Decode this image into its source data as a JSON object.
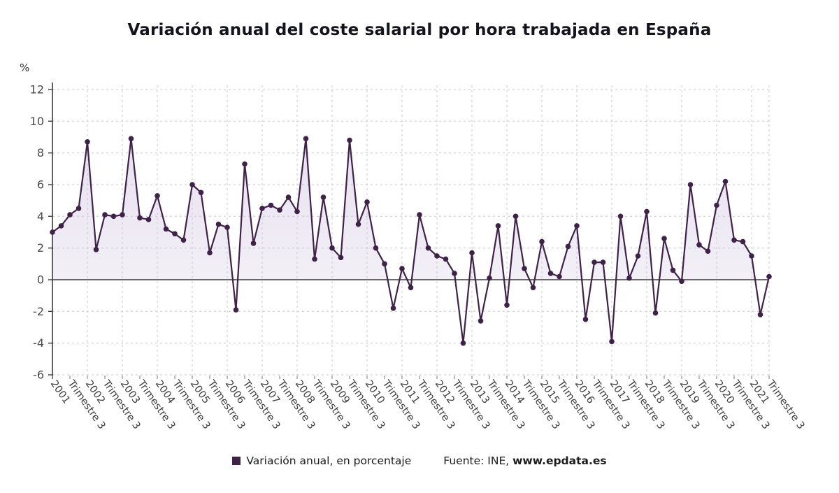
{
  "chart_data": {
    "type": "line",
    "title": "Variación anual del coste salarial por hora trabajada en España",
    "ylabel": "%",
    "xlabel": "",
    "ylim": [
      -6,
      12
    ],
    "yticks": [
      12,
      10,
      8,
      6,
      4,
      2,
      0,
      -2,
      -4,
      -6
    ],
    "grid": true,
    "legend_position": "bottom",
    "series_name": "Variación anual, en porcentaje",
    "x_period_start": "2001 Trimestre 1",
    "x_period_end": "2021 Trimestre 3",
    "x_tick_labels": [
      "2001",
      "Trimestre 3",
      "2002",
      "Trimestre 3",
      "2003",
      "Trimestre 3",
      "2004",
      "Trimestre 3",
      "2005",
      "Trimestre 3",
      "2006",
      "Trimestre 3",
      "2007",
      "Trimestre 3",
      "2008",
      "Trimestre 3",
      "2009",
      "Trimestre 3",
      "2010",
      "Trimestre 3",
      "2011",
      "Trimestre 3",
      "2012",
      "Trimestre 3",
      "2013",
      "Trimestre 3",
      "2014",
      "Trimestre 3",
      "2015",
      "Trimestre 3",
      "2016",
      "Trimestre 3",
      "2017",
      "Trimestre 3",
      "2018",
      "Trimestre 3",
      "2019",
      "Trimestre 3",
      "2020",
      "Trimestre 3",
      "2021",
      "Trimestre 3"
    ],
    "values": [
      3.0,
      3.4,
      4.1,
      4.5,
      8.7,
      1.9,
      4.1,
      4.0,
      4.1,
      8.9,
      3.9,
      3.8,
      5.3,
      3.2,
      2.9,
      2.5,
      6.0,
      5.5,
      1.7,
      3.5,
      3.3,
      -1.9,
      7.3,
      2.3,
      4.5,
      4.7,
      4.4,
      5.2,
      4.3,
      8.9,
      1.3,
      5.2,
      2.0,
      1.4,
      8.8,
      3.5,
      4.9,
      2.0,
      1.0,
      -1.8,
      0.7,
      -0.5,
      4.1,
      2.0,
      1.5,
      1.3,
      0.4,
      -4.0,
      1.7,
      -2.6,
      0.1,
      3.4,
      -1.6,
      4.0,
      0.7,
      -0.5,
      2.4,
      0.4,
      0.2,
      2.1,
      3.4,
      -2.5,
      1.1,
      1.1,
      -3.9,
      4.0,
      0.1,
      1.5,
      4.3,
      -2.1,
      2.6,
      0.6,
      -0.1,
      6.0,
      2.2,
      1.8,
      4.7,
      6.2,
      2.5,
      2.4,
      1.5,
      -2.2,
      0.2
    ],
    "colors": {
      "line": "#3F2248",
      "point": "#3F2248",
      "area_top": "#E7E1EF",
      "area_bottom": "#F8F6FB",
      "grid": "#C8C8D2",
      "axis": "#3A3A3A",
      "tick_text": "#4A4A4A"
    }
  },
  "legend": {
    "series_label": "Variación anual, en porcentaje",
    "source_prefix": "Fuente: INE, ",
    "source_site": "www.epdata.es"
  }
}
